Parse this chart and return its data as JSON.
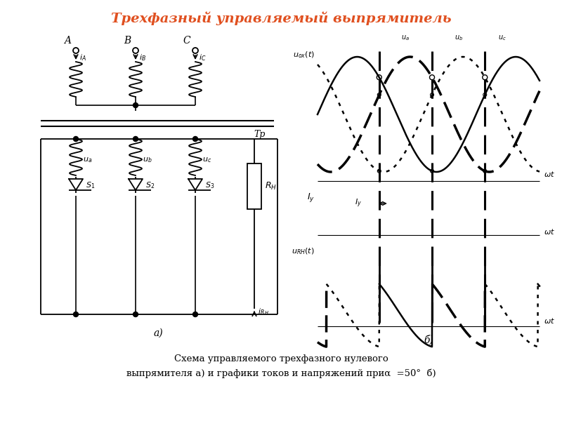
{
  "title": "Трехфазный управляемый выпрямитель",
  "title_color": "#e05020",
  "title_fontsize": 14,
  "background_color": "#ffffff",
  "caption_line1": "Схема управляемого трехфазного нулевого",
  "caption_line2": "выпрямителя а) и графики токов и напряжений приα  =50°  б)",
  "alpha_deg": 50
}
